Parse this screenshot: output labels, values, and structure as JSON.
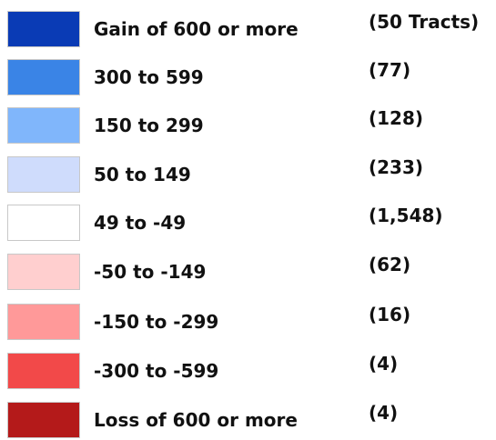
{
  "legend": {
    "items": [
      {
        "label": "Gain of 600 or more",
        "count": "(50 Tracts)",
        "color": "#0a3bb5"
      },
      {
        "label": "300 to 599",
        "count": "(77)",
        "color": "#3a84e6"
      },
      {
        "label": "150 to 299",
        "count": "(128)",
        "color": "#80b6fb"
      },
      {
        "label": "50 to 149",
        "count": "(233)",
        "color": "#cfdcfc"
      },
      {
        "label": "49 to -49",
        "count": "(1,548)",
        "color": "#ffffff"
      },
      {
        "label": "-50 to -149",
        "count": "(62)",
        "color": "#ffcfcf"
      },
      {
        "label": "-150 to -299",
        "count": "(16)",
        "color": "#ff9999"
      },
      {
        "label": "-300 to -599",
        "count": "(4)",
        "color": "#f24949"
      },
      {
        "label": "Loss of 600 or more",
        "count": "(4)",
        "color": "#b41a1a"
      }
    ]
  }
}
